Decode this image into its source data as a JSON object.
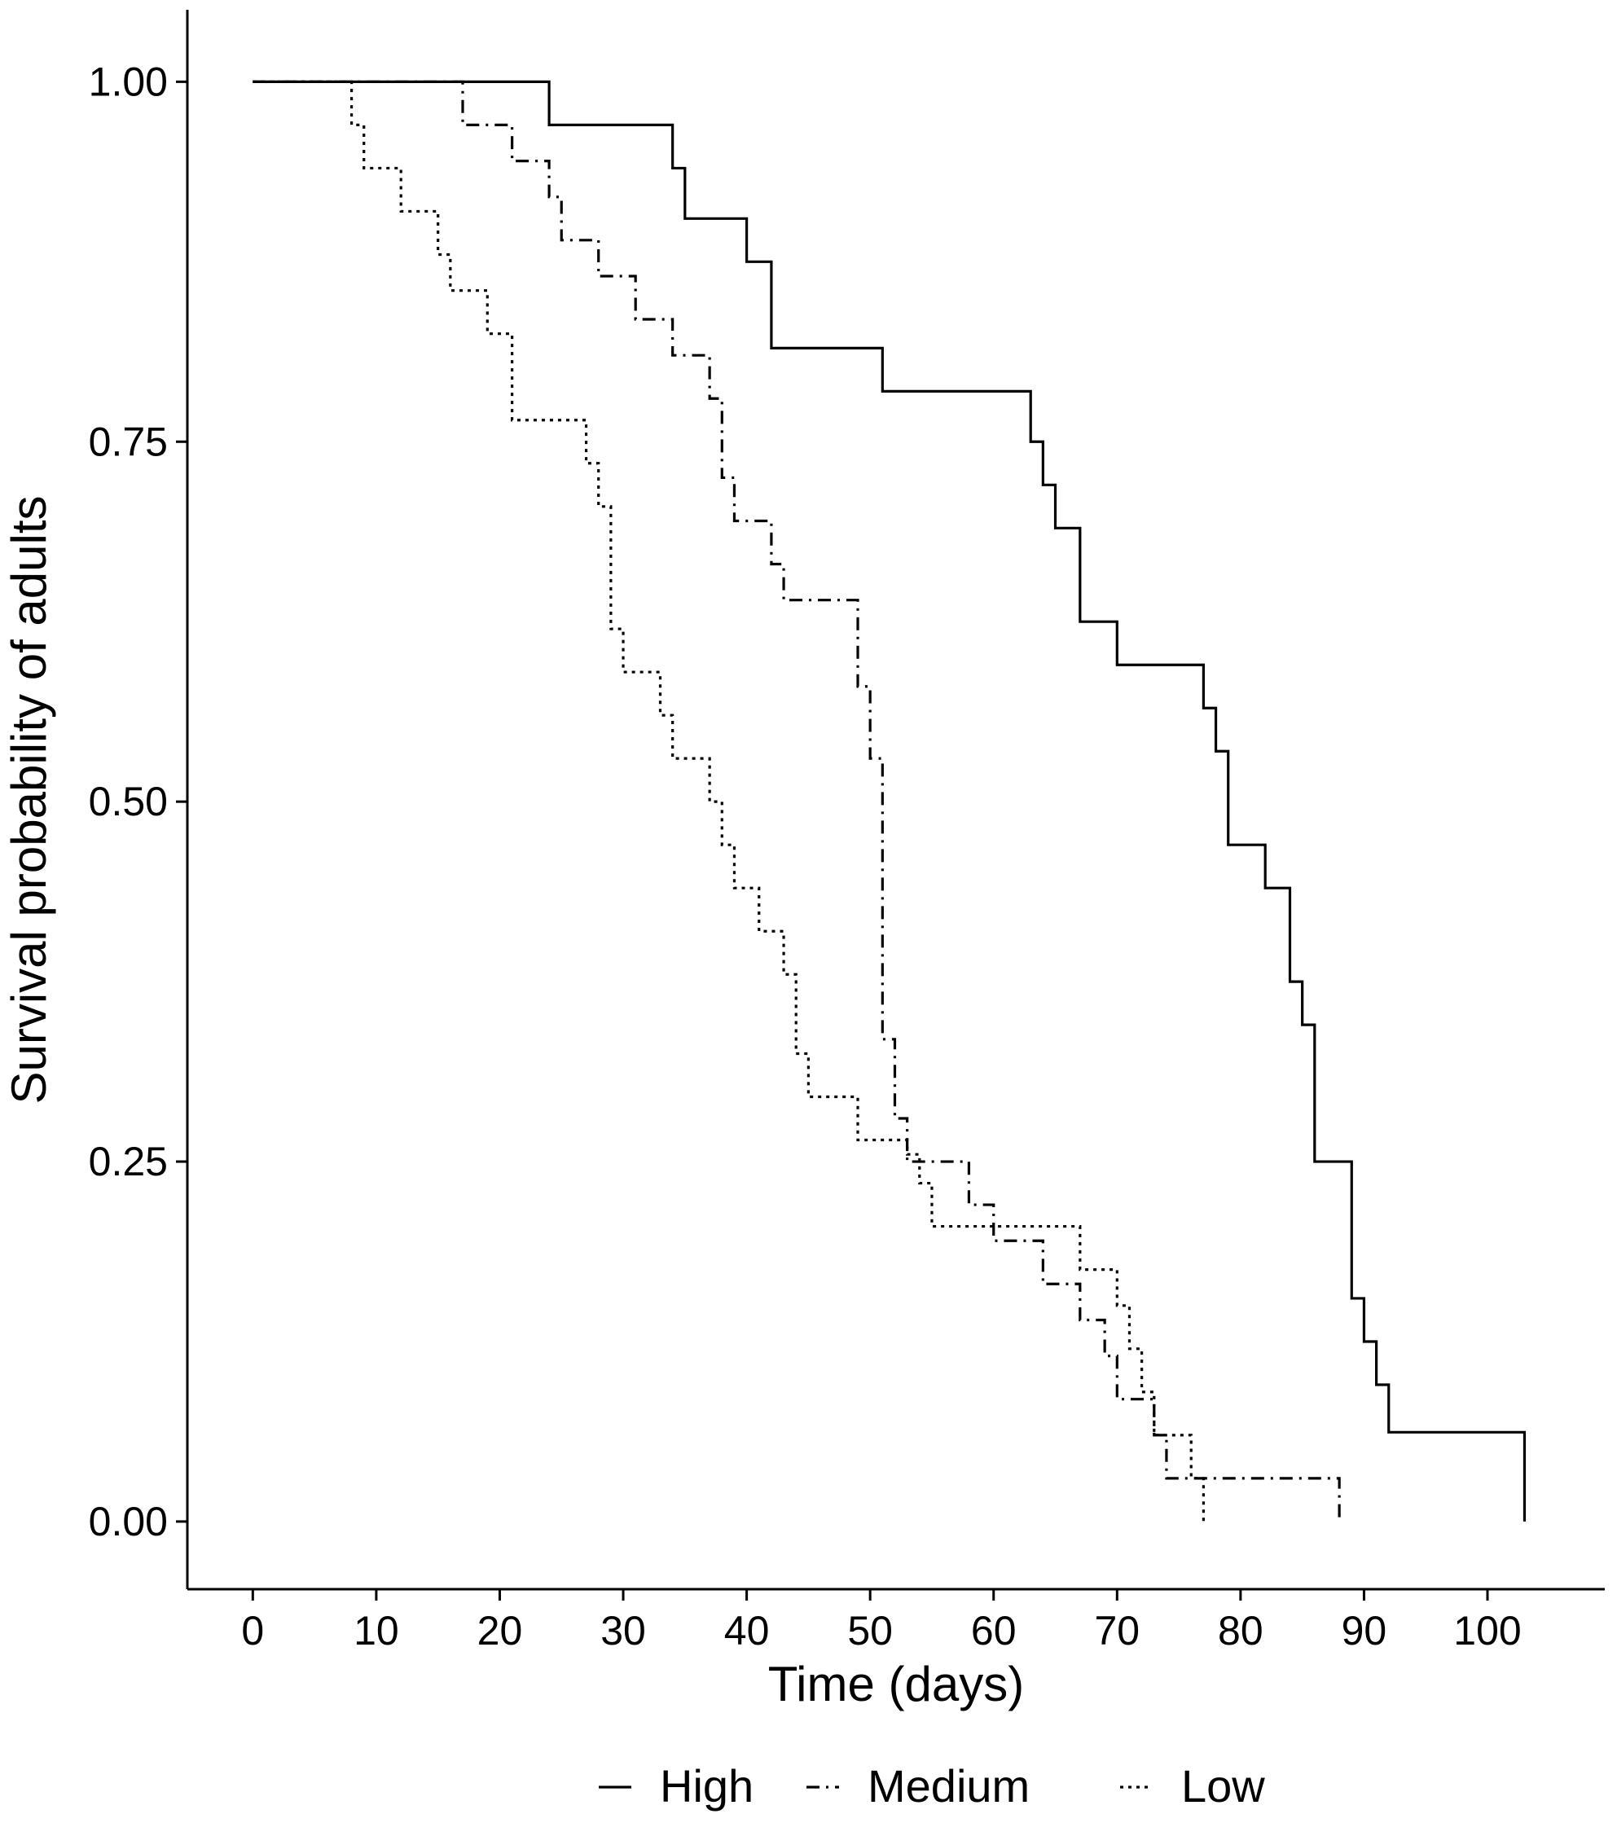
{
  "chart_data": {
    "type": "line",
    "xlabel": "Time (days)",
    "ylabel": "Survival probability of adults",
    "xlim": [
      -5.3,
      109.5
    ],
    "ylim": [
      -0.047,
      1.05
    ],
    "xticks": [
      0,
      10,
      20,
      30,
      40,
      50,
      60,
      70,
      80,
      90,
      100
    ],
    "yticks": [
      0.0,
      0.25,
      0.5,
      0.75,
      1.0
    ],
    "ytick_labels": [
      "0.00",
      "0.25",
      "0.50",
      "0.75",
      "1.00"
    ],
    "grid": false,
    "legend_position": "bottom",
    "step": true,
    "series": [
      {
        "name": "High",
        "line_style": "solid",
        "points": [
          [
            0,
            1.0
          ],
          [
            24,
            0.97
          ],
          [
            34,
            0.94
          ],
          [
            35,
            0.905
          ],
          [
            40,
            0.875
          ],
          [
            42,
            0.815
          ],
          [
            51,
            0.785
          ],
          [
            63,
            0.75
          ],
          [
            64,
            0.72
          ],
          [
            65,
            0.69
          ],
          [
            67,
            0.625
          ],
          [
            70,
            0.595
          ],
          [
            77,
            0.565
          ],
          [
            78,
            0.535
          ],
          [
            79,
            0.47
          ],
          [
            82,
            0.44
          ],
          [
            84,
            0.375
          ],
          [
            85,
            0.345
          ],
          [
            86,
            0.25
          ],
          [
            89,
            0.155
          ],
          [
            90,
            0.125
          ],
          [
            91,
            0.095
          ],
          [
            92,
            0.062
          ],
          [
            103,
            0.0
          ]
        ]
      },
      {
        "name": "Medium",
        "line_style": "dashdot",
        "points": [
          [
            0,
            1.0
          ],
          [
            17,
            0.97
          ],
          [
            21,
            0.945
          ],
          [
            24,
            0.92
          ],
          [
            25,
            0.89
          ],
          [
            28,
            0.865
          ],
          [
            31,
            0.835
          ],
          [
            34,
            0.81
          ],
          [
            37,
            0.78
          ],
          [
            38,
            0.725
          ],
          [
            39,
            0.695
          ],
          [
            42,
            0.665
          ],
          [
            43,
            0.64
          ],
          [
            49,
            0.58
          ],
          [
            50,
            0.53
          ],
          [
            51,
            0.335
          ],
          [
            52,
            0.28
          ],
          [
            53,
            0.25
          ],
          [
            58,
            0.22
          ],
          [
            60,
            0.195
          ],
          [
            64,
            0.165
          ],
          [
            67,
            0.14
          ],
          [
            69,
            0.115
          ],
          [
            70,
            0.085
          ],
          [
            73,
            0.06
          ],
          [
            74,
            0.03
          ],
          [
            88,
            0.0
          ]
        ]
      },
      {
        "name": "Low",
        "line_style": "dotted",
        "points": [
          [
            0,
            1.0
          ],
          [
            8,
            0.97
          ],
          [
            9,
            0.94
          ],
          [
            12,
            0.91
          ],
          [
            15,
            0.88
          ],
          [
            16,
            0.855
          ],
          [
            19,
            0.825
          ],
          [
            21,
            0.765
          ],
          [
            27,
            0.735
          ],
          [
            28,
            0.705
          ],
          [
            29,
            0.62
          ],
          [
            30,
            0.59
          ],
          [
            33,
            0.56
          ],
          [
            34,
            0.53
          ],
          [
            37,
            0.5
          ],
          [
            38,
            0.47
          ],
          [
            39,
            0.44
          ],
          [
            41,
            0.41
          ],
          [
            43,
            0.38
          ],
          [
            44,
            0.325
          ],
          [
            45,
            0.295
          ],
          [
            49,
            0.265
          ],
          [
            53,
            0.255
          ],
          [
            54,
            0.235
          ],
          [
            55,
            0.205
          ],
          [
            67,
            0.175
          ],
          [
            70,
            0.15
          ],
          [
            71,
            0.12
          ],
          [
            72,
            0.09
          ],
          [
            73,
            0.06
          ],
          [
            76,
            0.03
          ],
          [
            77,
            0.0
          ]
        ]
      }
    ]
  }
}
